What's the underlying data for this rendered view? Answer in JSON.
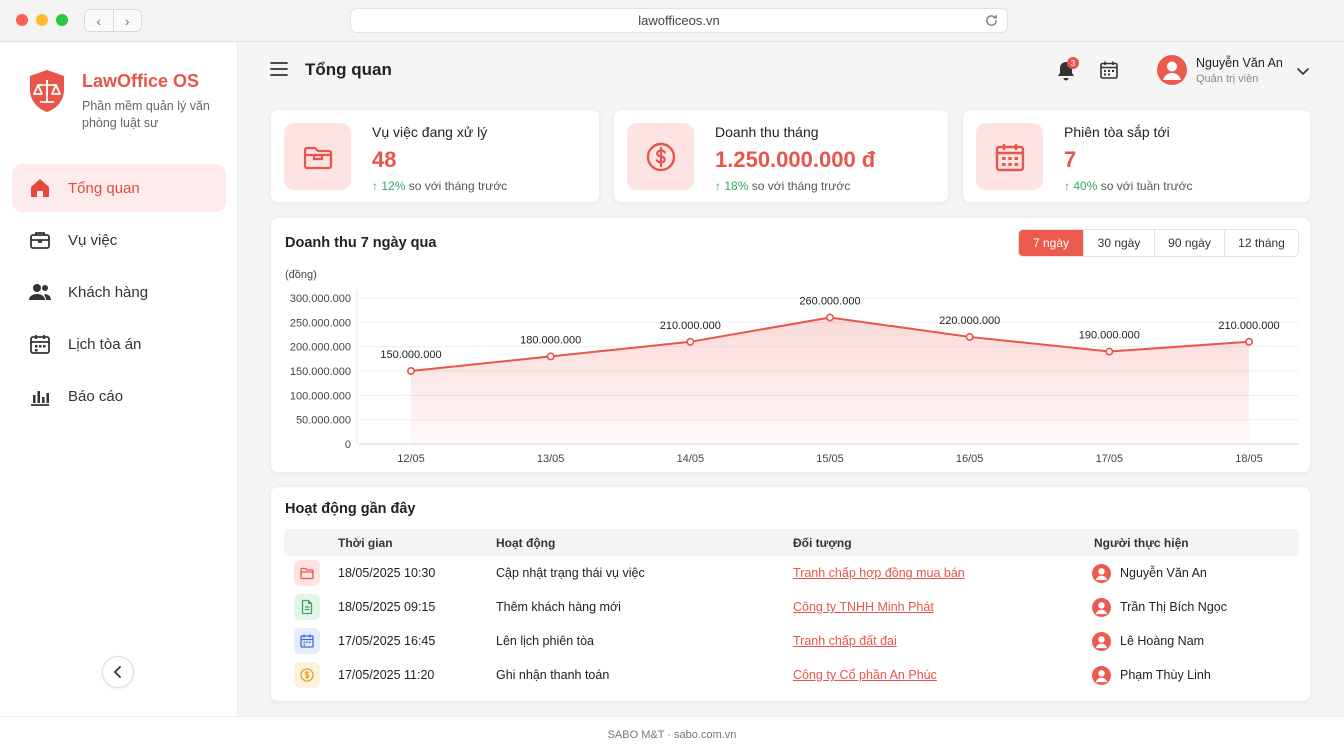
{
  "browser": {
    "url": "lawofficeos.vn"
  },
  "sidebar": {
    "brand": "LawOffice OS",
    "tagline": "Phần mềm quản lý văn phòng luật sư",
    "items": [
      {
        "label": "Tổng quan",
        "icon": "home-icon",
        "active": true
      },
      {
        "label": "Vụ việc",
        "icon": "briefcase-icon",
        "active": false
      },
      {
        "label": "Khách hàng",
        "icon": "users-icon",
        "active": false
      },
      {
        "label": "Lịch tòa án",
        "icon": "calendar-icon",
        "active": false
      },
      {
        "label": "Báo cáo",
        "icon": "bar-chart-icon",
        "active": false
      }
    ]
  },
  "header": {
    "title": "Tổng quan",
    "notification_count": "3",
    "user": {
      "name": "Nguyễn Văn An",
      "role": "Quản trị viên"
    }
  },
  "stats": [
    {
      "label": "Vụ việc đang xử lý",
      "value": "48",
      "trend_pct": "12%",
      "trend_text": "so với tháng trước",
      "icon": "folder-icon"
    },
    {
      "label": "Doanh thu tháng",
      "value": "1.250.000.000 đ",
      "trend_pct": "18%",
      "trend_text": "so với tháng trước",
      "icon": "dollar-icon"
    },
    {
      "label": "Phiên tòa sắp tới",
      "value": "7",
      "trend_pct": "40%",
      "trend_text": "so với tuần trước",
      "icon": "calendar-icon"
    }
  ],
  "revenue": {
    "title": "Doanh thu 7 ngày qua",
    "ranges": [
      "7 ngày",
      "30 ngày",
      "90 ngày",
      "12 tháng"
    ],
    "active_range": "7 ngày"
  },
  "chart_data": {
    "type": "area",
    "title": "Doanh thu 7 ngày qua",
    "ylabel": "(đồng)",
    "categories": [
      "12/05",
      "13/05",
      "14/05",
      "15/05",
      "16/05",
      "17/05",
      "18/05"
    ],
    "values": [
      150000000,
      180000000,
      210000000,
      260000000,
      220000000,
      190000000,
      210000000
    ],
    "value_labels": [
      "150.000.000",
      "180.000.000",
      "210.000.000",
      "260.000.000",
      "220.000.000",
      "190.000.000",
      "210.000.000"
    ],
    "ylim": [
      0,
      300000000
    ],
    "yticks": [
      0,
      50000000,
      100000000,
      150000000,
      200000000,
      250000000,
      300000000
    ],
    "ytick_labels": [
      "0",
      "50.000.000",
      "100.000.000",
      "150.000.000",
      "200.000.000",
      "250.000.000",
      "300.000.000"
    ],
    "grid": true,
    "color": "#e8554a"
  },
  "activity": {
    "title": "Hoạt động gần đây",
    "columns": [
      "Thời gian",
      "Hoạt động",
      "Đối tượng",
      "Người thực hiện"
    ],
    "rows": [
      {
        "icon": "folder-icon",
        "color": "#fde4e2",
        "stroke": "#e8554a",
        "time": "18/05/2025 10:30",
        "action": "Cập nhật trạng thái vụ việc",
        "target": "Tranh chấp hợp đồng mua bán",
        "user": "Nguyễn Văn An"
      },
      {
        "icon": "document-icon",
        "color": "#e3f4e8",
        "stroke": "#3aa55e",
        "time": "18/05/2025 09:15",
        "action": "Thêm khách hàng mới",
        "target": "Công ty TNHH Minh Phát",
        "user": "Trần Thị Bích Ngọc"
      },
      {
        "icon": "calendar-icon",
        "color": "#e5ecfb",
        "stroke": "#3b6fd8",
        "time": "17/05/2025 16:45",
        "action": "Lên lịch phiên tòa",
        "target": "Tranh chấp đất đai",
        "user": "Lê Hoàng Nam"
      },
      {
        "icon": "coin-icon",
        "color": "#fdf2dc",
        "stroke": "#e0a22d",
        "time": "17/05/2025 11:20",
        "action": "Ghi nhận thanh toán",
        "target": "Công ty Cổ phần An Phúc",
        "user": "Phạm Thùy Linh"
      }
    ]
  },
  "footer": {
    "text": "SABO M&T · sabo.com.vn"
  }
}
